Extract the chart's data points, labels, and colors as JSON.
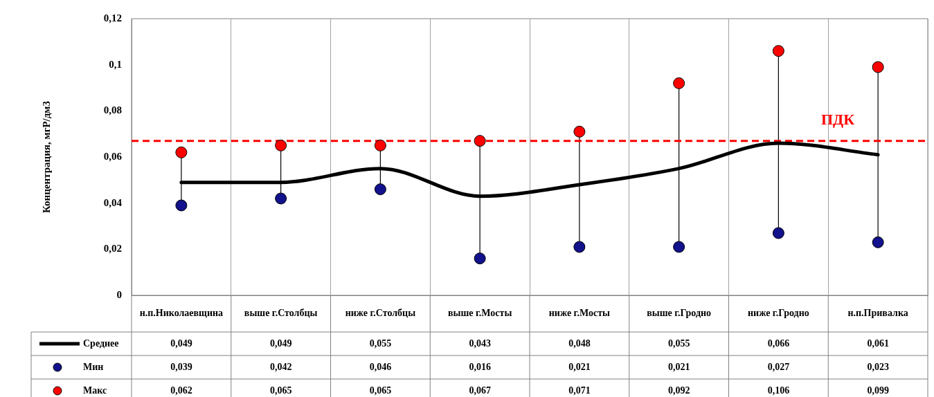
{
  "chart_data": {
    "type": "line",
    "ylabel": "Концентрация, мгР/дм3",
    "categories": [
      "н.п.Николаевщина",
      "выше г.Столбцы",
      "ниже г.Столбцы",
      "выше г.Мосты",
      "ниже г.Мосты",
      "выше г.Гродно",
      "ниже г.Гродно",
      "н.п.Привалка"
    ],
    "series": [
      {
        "name": "Среднее",
        "type": "line",
        "marker": "none",
        "color": "#000000",
        "values": [
          0.049,
          0.049,
          0.055,
          0.043,
          0.048,
          0.055,
          0.066,
          0.061
        ],
        "value_labels": [
          "0,049",
          "0,049",
          "0,055",
          "0,043",
          "0,048",
          "0,055",
          "0,066",
          "0,061"
        ]
      },
      {
        "name": "Мин",
        "type": "scatter",
        "marker": "circle",
        "color": "#12128c",
        "values": [
          0.039,
          0.042,
          0.046,
          0.016,
          0.021,
          0.021,
          0.027,
          0.023
        ],
        "value_labels": [
          "0,039",
          "0,042",
          "0,046",
          "0,016",
          "0,021",
          "0,021",
          "0,027",
          "0,023"
        ]
      },
      {
        "name": "Макс",
        "type": "scatter",
        "marker": "circle",
        "color": "#ff0000",
        "values": [
          0.062,
          0.065,
          0.065,
          0.067,
          0.071,
          0.092,
          0.106,
          0.099
        ],
        "value_labels": [
          "0,062",
          "0,065",
          "0,065",
          "0,067",
          "0,071",
          "0,092",
          "0,106",
          "0,099"
        ]
      }
    ],
    "ylim": [
      0,
      0.12
    ],
    "yticks": [
      0,
      {
        "value": 0.02,
        "label": "0,02"
      },
      {
        "value": 0.04,
        "label": "0,04"
      },
      {
        "value": 0.06,
        "label": "0,06"
      },
      {
        "value": 0.08,
        "label": "0,08"
      },
      {
        "value": 0.1,
        "label": "0,1"
      },
      {
        "value": 0.12,
        "label": "0,12"
      }
    ],
    "ref_lines": [
      {
        "axis": "y",
        "value": 0.067,
        "label": "ПДК",
        "color": "#ff0000",
        "line_style": "dashed"
      }
    ],
    "grid": "x",
    "legend": "bottom"
  }
}
